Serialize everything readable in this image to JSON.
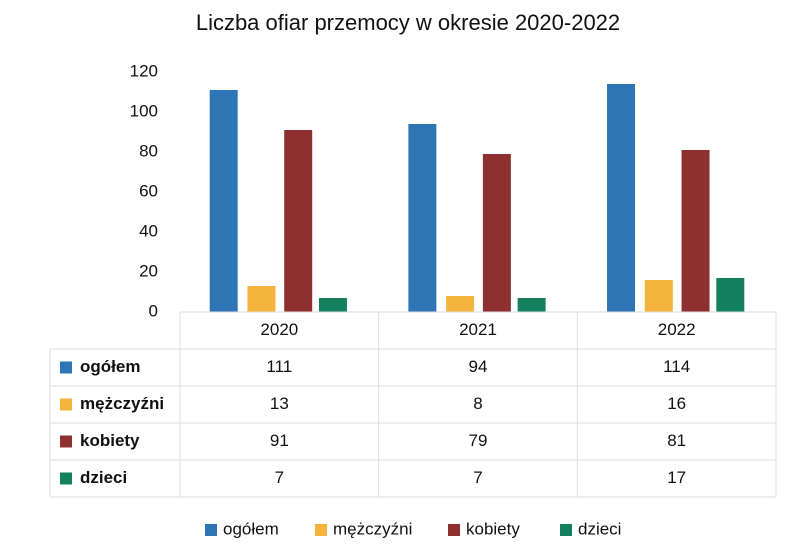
{
  "chart_data": {
    "type": "bar",
    "title": "Liczba ofiar przemocy w okresie 2020-2022",
    "categories": [
      "2020",
      "2021",
      "2022"
    ],
    "series": [
      {
        "name": "ogółem",
        "color": "#2e75b6",
        "values": [
          111,
          94,
          114
        ]
      },
      {
        "name": "mężczyźni",
        "color": "#f4b33a",
        "values": [
          13,
          8,
          16
        ]
      },
      {
        "name": "kobiety",
        "color": "#8e3030",
        "values": [
          91,
          79,
          81
        ]
      },
      {
        "name": "dzieci",
        "color": "#14805e",
        "values": [
          7,
          7,
          17
        ]
      }
    ],
    "ylim": [
      0,
      120
    ],
    "yticks": [
      0,
      20,
      40,
      60,
      80,
      100,
      120
    ],
    "data_table": true,
    "legend": "bottom"
  }
}
